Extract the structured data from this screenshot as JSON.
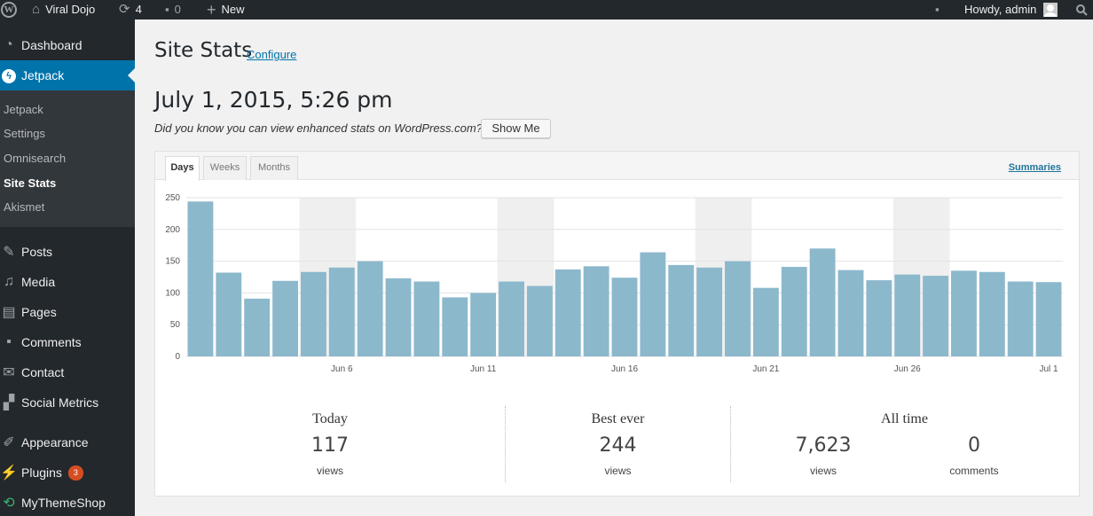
{
  "admin_bar": {
    "site_name": "Viral Dojo",
    "updates_count": "4",
    "comments_count": "0",
    "new_label": "New",
    "howdy": "Howdy, admin"
  },
  "sidebar": {
    "top_items": [
      {
        "label": "Dashboard",
        "icon": "dashboard-icon"
      },
      {
        "label": "Jetpack",
        "icon": "jetpack-icon"
      }
    ],
    "submenu": [
      {
        "label": "Jetpack"
      },
      {
        "label": "Settings"
      },
      {
        "label": "Omnisearch"
      },
      {
        "label": "Site Stats"
      },
      {
        "label": "Akismet"
      }
    ],
    "items": [
      {
        "label": "Posts",
        "icon": "pin-icon"
      },
      {
        "label": "Media",
        "icon": "media-icon"
      },
      {
        "label": "Pages",
        "icon": "pages-icon"
      },
      {
        "label": "Comments",
        "icon": "comment-icon"
      },
      {
        "label": "Contact",
        "icon": "mail-icon"
      },
      {
        "label": "Social Metrics",
        "icon": "chart-icon"
      },
      {
        "label": "Appearance",
        "icon": "brush-icon"
      },
      {
        "label": "Plugins",
        "icon": "plug-icon",
        "badge": "3"
      },
      {
        "label": "MyThemeShop",
        "icon": "refresh-icon"
      }
    ]
  },
  "page": {
    "title": "Site Stats",
    "configure_link": "Configure",
    "date": "July 1, 2015, 5:26 pm",
    "promo_text": "Did you know you can view enhanced stats on WordPress.com?",
    "show_me": "Show Me"
  },
  "tabs": [
    {
      "label": "Days",
      "active": true
    },
    {
      "label": "Weeks",
      "active": false
    },
    {
      "label": "Months",
      "active": false
    }
  ],
  "summaries_link": "Summaries",
  "chart_data": {
    "type": "bar",
    "categories": [
      "Jun 1",
      "Jun 2",
      "Jun 3",
      "Jun 4",
      "Jun 5",
      "Jun 6",
      "Jun 7",
      "Jun 8",
      "Jun 9",
      "Jun 10",
      "Jun 11",
      "Jun 12",
      "Jun 13",
      "Jun 14",
      "Jun 15",
      "Jun 16",
      "Jun 17",
      "Jun 18",
      "Jun 19",
      "Jun 20",
      "Jun 21",
      "Jun 22",
      "Jun 23",
      "Jun 24",
      "Jun 25",
      "Jun 26",
      "Jun 27",
      "Jun 28",
      "Jun 29",
      "Jun 30",
      "Jul 1"
    ],
    "values": [
      244,
      132,
      91,
      119,
      133,
      140,
      150,
      123,
      118,
      93,
      100,
      118,
      111,
      137,
      142,
      124,
      164,
      144,
      140,
      150,
      108,
      141,
      170,
      136,
      120,
      129,
      127,
      135,
      133,
      118,
      117
    ],
    "x_tick_labels": [
      "Jun 6",
      "Jun 11",
      "Jun 16",
      "Jun 21",
      "Jun 26",
      "Jul 1"
    ],
    "y_ticks": [
      0,
      50,
      100,
      150,
      200,
      250
    ],
    "ylim": [
      0,
      250
    ],
    "weekend_shading": [
      [
        4,
        5
      ],
      [
        11,
        12
      ],
      [
        18,
        19
      ],
      [
        25,
        26
      ]
    ],
    "bar_color": "#8cb8cc",
    "weekend_color": "#efefef",
    "grid": true
  },
  "stats": {
    "today": {
      "title": "Today",
      "value": "117",
      "unit": "views"
    },
    "best_ever": {
      "title": "Best ever",
      "value": "244",
      "unit": "views"
    },
    "all_time": {
      "title": "All time",
      "views": "7,623",
      "views_unit": "views",
      "comments": "0",
      "comments_unit": "comments"
    }
  }
}
